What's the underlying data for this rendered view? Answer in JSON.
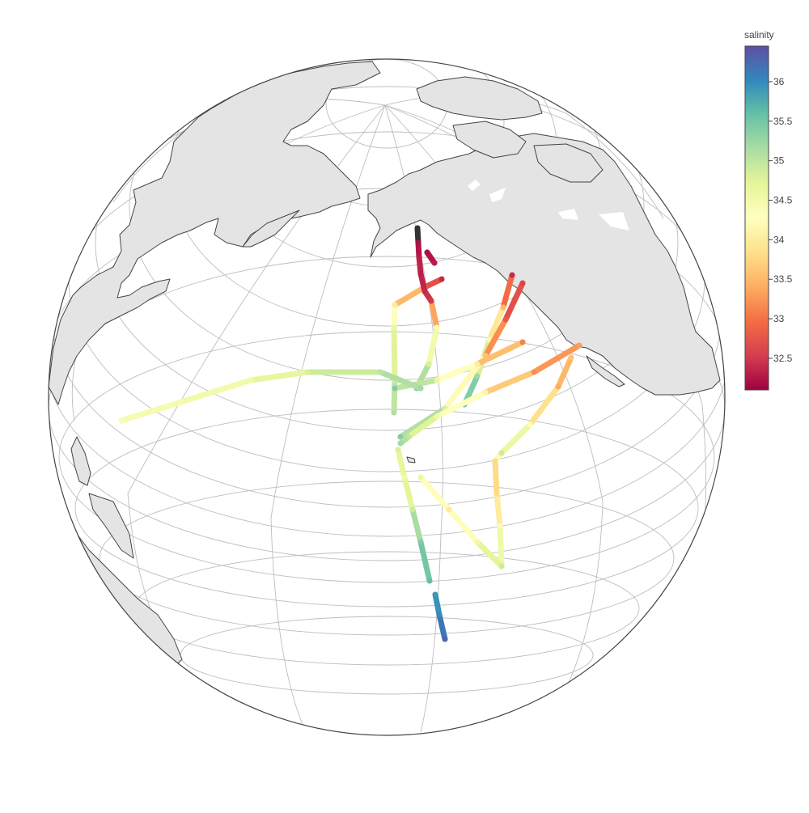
{
  "colorbar": {
    "title": "salinity",
    "ticks": [
      "36",
      "35.5",
      "35",
      "34.5",
      "34",
      "33.5",
      "33",
      "32.5"
    ],
    "tick_values": [
      36,
      35.5,
      35,
      34.5,
      34,
      33.5,
      33,
      32.5
    ],
    "range": [
      32.1,
      36.45
    ],
    "colorscale": [
      "#9e0142",
      "#d53e4f",
      "#f46d43",
      "#fdae61",
      "#fee08b",
      "#ffffbf",
      "#e6f598",
      "#abdda4",
      "#66c2a5",
      "#3288bd",
      "#5e4fa2"
    ]
  },
  "map": {
    "projection": "orthographic",
    "land_color": "#e4e4e4",
    "coastline_color": "#444444",
    "graticule_color": "#bdbdbd"
  },
  "chart_data": {
    "type": "scatter",
    "title": "",
    "variable": "salinity",
    "series": [
      {
        "values": [
          31.9,
          32.2,
          32.3,
          32.4
        ]
      },
      {
        "values": [
          32.2,
          32.3
        ]
      },
      {
        "values": [
          32.4,
          33.0,
          34.0,
          34.6,
          34.9,
          35.1
        ]
      },
      {
        "values": [
          32.3,
          32.4,
          32.5,
          34.2,
          34.8,
          35.4
        ]
      },
      {
        "values": [
          32.4,
          33.5,
          34.4,
          35.2,
          35.6
        ]
      },
      {
        "values": [
          32.6,
          32.8,
          33.6,
          34.8,
          35.4
        ]
      },
      {
        "values": [
          33.1,
          34.0,
          34.6,
          35.4
        ]
      },
      {
        "values": [
          34.4,
          34.5,
          34.5,
          34.8,
          35.0,
          35.2
        ]
      },
      {
        "values": [
          33.3,
          33.2,
          34.1,
          34.5,
          35.0,
          35.2
        ]
      },
      {
        "values": [
          33.6,
          33.4,
          34.3,
          34.9
        ]
      },
      {
        "values": [
          34.9,
          33.8,
          33.8,
          34.2,
          34.9
        ]
      },
      {
        "values": [
          34.9,
          34.5,
          34.0,
          34.6
        ]
      },
      {
        "values": [
          34.8,
          34.5,
          34.9,
          35.4,
          35.6
        ]
      },
      {
        "values": [
          35.9,
          36.0,
          36.3,
          36.4
        ]
      }
    ]
  }
}
